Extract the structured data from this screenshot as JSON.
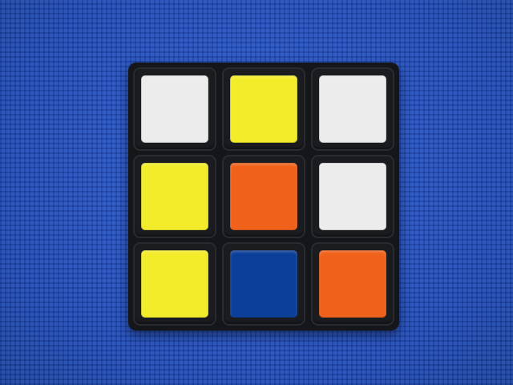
{
  "background": {
    "surface": "blue fabric",
    "color": "#1f4fc4"
  },
  "cube": {
    "face_colors": {
      "white": "#ececec",
      "yellow": "#f2ec2a",
      "orange": "#f0621c",
      "blue": "#0c3f99"
    },
    "rows": [
      [
        "white",
        "yellow",
        "white"
      ],
      [
        "yellow",
        "orange",
        "white"
      ],
      [
        "yellow",
        "blue",
        "orange"
      ]
    ]
  }
}
